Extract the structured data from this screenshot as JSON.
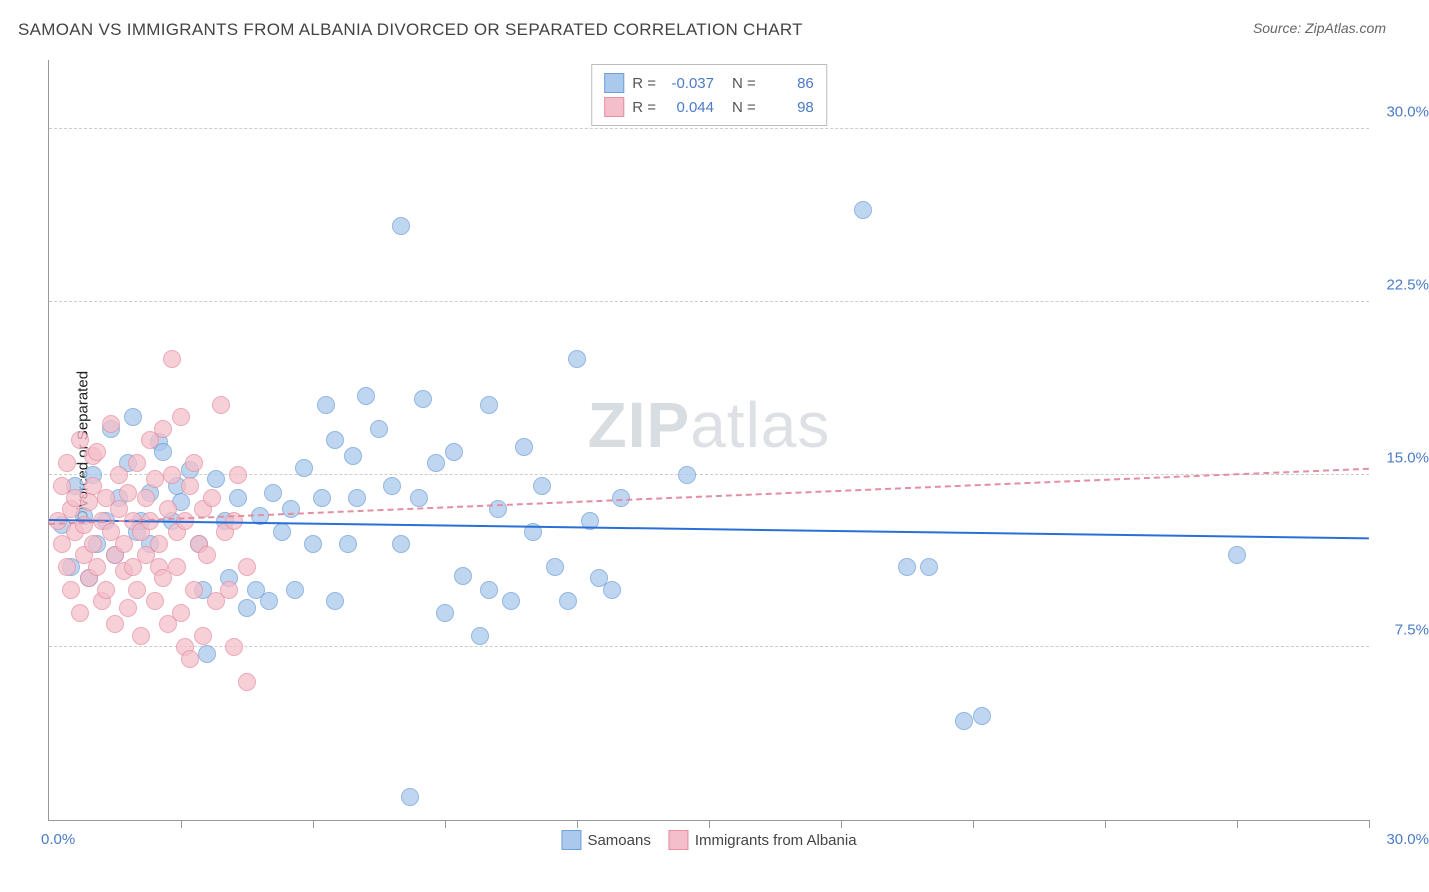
{
  "title": "SAMOAN VS IMMIGRANTS FROM ALBANIA DIVORCED OR SEPARATED CORRELATION CHART",
  "source_label": "Source: ",
  "source_value": "ZipAtlas.com",
  "ylabel": "Divorced or Separated",
  "watermark_a": "ZIP",
  "watermark_b": "atlas",
  "chart": {
    "type": "scatter",
    "xlim": [
      0,
      30
    ],
    "ylim": [
      0,
      33
    ],
    "x_origin_label": "0.0%",
    "x_max_label": "30.0%",
    "y_ticks": [
      7.5,
      15.0,
      22.5,
      30.0
    ],
    "y_tick_labels": [
      "7.5%",
      "15.0%",
      "22.5%",
      "30.0%"
    ],
    "x_tick_positions": [
      3,
      6,
      9,
      12,
      15,
      18,
      21,
      24,
      27,
      30
    ],
    "grid_color": "#cccccc",
    "bg": "#ffffff",
    "marker_radius": 8,
    "series": [
      {
        "name": "Samoans",
        "fill": "#aac9ec",
        "stroke": "#6f9fd8",
        "r_value": "-0.037",
        "n_value": "86",
        "trend": {
          "color": "#2a6fd6",
          "dash": false,
          "y_start": 13.0,
          "y_end": 12.2
        },
        "points": [
          [
            0.3,
            12.8
          ],
          [
            0.5,
            11.0
          ],
          [
            0.6,
            14.5
          ],
          [
            0.8,
            13.2
          ],
          [
            0.9,
            10.5
          ],
          [
            1.0,
            15.0
          ],
          [
            1.1,
            12.0
          ],
          [
            1.3,
            13.0
          ],
          [
            1.4,
            17.0
          ],
          [
            1.5,
            11.5
          ],
          [
            1.6,
            14.0
          ],
          [
            1.8,
            15.5
          ],
          [
            1.9,
            17.5
          ],
          [
            2.0,
            12.5
          ],
          [
            2.1,
            13.0
          ],
          [
            2.3,
            12.0
          ],
          [
            2.3,
            14.2
          ],
          [
            2.5,
            16.4
          ],
          [
            2.6,
            16.0
          ],
          [
            2.8,
            13.0
          ],
          [
            2.9,
            14.5
          ],
          [
            3.0,
            13.8
          ],
          [
            3.2,
            15.2
          ],
          [
            3.4,
            12.0
          ],
          [
            3.5,
            10.0
          ],
          [
            3.6,
            7.2
          ],
          [
            3.8,
            14.8
          ],
          [
            4.0,
            13.0
          ],
          [
            4.1,
            10.5
          ],
          [
            4.3,
            14.0
          ],
          [
            4.5,
            9.2
          ],
          [
            4.7,
            10.0
          ],
          [
            4.8,
            13.2
          ],
          [
            5.0,
            9.5
          ],
          [
            5.1,
            14.2
          ],
          [
            5.3,
            12.5
          ],
          [
            5.5,
            13.5
          ],
          [
            5.6,
            10.0
          ],
          [
            5.8,
            15.3
          ],
          [
            6.0,
            12.0
          ],
          [
            6.2,
            14.0
          ],
          [
            6.3,
            18.0
          ],
          [
            6.5,
            16.5
          ],
          [
            6.5,
            9.5
          ],
          [
            6.8,
            12.0
          ],
          [
            6.9,
            15.8
          ],
          [
            7.0,
            14.0
          ],
          [
            7.2,
            18.4
          ],
          [
            7.5,
            17.0
          ],
          [
            7.8,
            14.5
          ],
          [
            8.0,
            12.0
          ],
          [
            8.0,
            25.8
          ],
          [
            8.2,
            1.0
          ],
          [
            8.4,
            14.0
          ],
          [
            8.5,
            18.3
          ],
          [
            8.8,
            15.5
          ],
          [
            9.0,
            9.0
          ],
          [
            9.2,
            16.0
          ],
          [
            9.4,
            10.6
          ],
          [
            9.8,
            8.0
          ],
          [
            10.0,
            18.0
          ],
          [
            10.0,
            10.0
          ],
          [
            10.2,
            13.5
          ],
          [
            10.5,
            9.5
          ],
          [
            10.8,
            16.2
          ],
          [
            11.0,
            12.5
          ],
          [
            11.2,
            14.5
          ],
          [
            11.5,
            11.0
          ],
          [
            11.8,
            9.5
          ],
          [
            12.0,
            20.0
          ],
          [
            12.3,
            13.0
          ],
          [
            12.5,
            10.5
          ],
          [
            12.8,
            10.0
          ],
          [
            13.0,
            14.0
          ],
          [
            14.5,
            15.0
          ],
          [
            18.5,
            26.5
          ],
          [
            19.5,
            11.0
          ],
          [
            20.0,
            11.0
          ],
          [
            20.8,
            4.3
          ],
          [
            21.2,
            4.5
          ],
          [
            27.0,
            11.5
          ]
        ]
      },
      {
        "name": "Immigrants from Albania",
        "fill": "#f4bfca",
        "stroke": "#e58fa3",
        "r_value": "0.044",
        "n_value": "98",
        "trend": {
          "color": "#e38fa3",
          "dash": true,
          "y_start": 12.8,
          "y_end": 15.2
        },
        "points": [
          [
            0.2,
            13.0
          ],
          [
            0.3,
            12.0
          ],
          [
            0.3,
            14.5
          ],
          [
            0.4,
            11.0
          ],
          [
            0.4,
            15.5
          ],
          [
            0.5,
            13.5
          ],
          [
            0.5,
            10.0
          ],
          [
            0.6,
            12.5
          ],
          [
            0.6,
            14.0
          ],
          [
            0.7,
            9.0
          ],
          [
            0.7,
            16.5
          ],
          [
            0.8,
            11.5
          ],
          [
            0.8,
            12.8
          ],
          [
            0.9,
            13.8
          ],
          [
            0.9,
            10.5
          ],
          [
            1.0,
            14.5
          ],
          [
            1.0,
            12.0
          ],
          [
            1.0,
            15.8
          ],
          [
            1.1,
            11.0
          ],
          [
            1.1,
            16.0
          ],
          [
            1.2,
            13.0
          ],
          [
            1.2,
            9.5
          ],
          [
            1.3,
            14.0
          ],
          [
            1.3,
            10.0
          ],
          [
            1.4,
            12.5
          ],
          [
            1.4,
            17.2
          ],
          [
            1.5,
            8.5
          ],
          [
            1.5,
            11.5
          ],
          [
            1.6,
            13.5
          ],
          [
            1.6,
            15.0
          ],
          [
            1.7,
            10.8
          ],
          [
            1.7,
            12.0
          ],
          [
            1.8,
            14.2
          ],
          [
            1.8,
            9.2
          ],
          [
            1.9,
            11.0
          ],
          [
            1.9,
            13.0
          ],
          [
            2.0,
            10.0
          ],
          [
            2.0,
            15.5
          ],
          [
            2.1,
            12.5
          ],
          [
            2.1,
            8.0
          ],
          [
            2.2,
            14.0
          ],
          [
            2.2,
            11.5
          ],
          [
            2.3,
            16.5
          ],
          [
            2.3,
            13.0
          ],
          [
            2.4,
            9.5
          ],
          [
            2.4,
            14.8
          ],
          [
            2.5,
            11.0
          ],
          [
            2.5,
            12.0
          ],
          [
            2.6,
            17.0
          ],
          [
            2.6,
            10.5
          ],
          [
            2.7,
            13.5
          ],
          [
            2.7,
            8.5
          ],
          [
            2.8,
            15.0
          ],
          [
            2.8,
            20.0
          ],
          [
            2.9,
            12.5
          ],
          [
            2.9,
            11.0
          ],
          [
            3.0,
            9.0
          ],
          [
            3.0,
            17.5
          ],
          [
            3.1,
            7.5
          ],
          [
            3.1,
            13.0
          ],
          [
            3.2,
            7.0
          ],
          [
            3.2,
            14.5
          ],
          [
            3.3,
            10.0
          ],
          [
            3.3,
            15.5
          ],
          [
            3.4,
            12.0
          ],
          [
            3.5,
            8.0
          ],
          [
            3.5,
            13.5
          ],
          [
            3.6,
            11.5
          ],
          [
            3.7,
            14.0
          ],
          [
            3.8,
            9.5
          ],
          [
            3.9,
            18.0
          ],
          [
            4.0,
            12.5
          ],
          [
            4.1,
            10.0
          ],
          [
            4.2,
            7.5
          ],
          [
            4.2,
            13.0
          ],
          [
            4.3,
            15.0
          ],
          [
            4.5,
            6.0
          ],
          [
            4.5,
            11.0
          ]
        ]
      }
    ]
  }
}
